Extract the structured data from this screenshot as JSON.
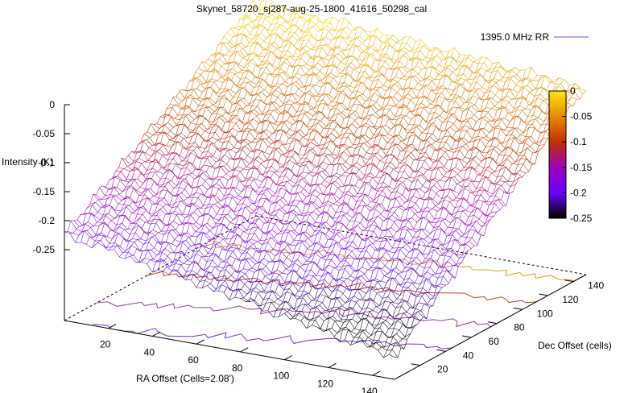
{
  "chart_data": {
    "type": "surface3d",
    "title": "Skynet_58720_sj287-aug-25-1800_41616_50298_cal",
    "xlabel": "RA Offset (Cells=2.08')",
    "ylabel": "Dec Offset (cells)",
    "zlabel": "Intensity (K)",
    "legend": {
      "label": "1395.0 MHz RR",
      "color": "#9a3fc0",
      "placement": "top-right"
    },
    "x_ticks": [
      "20",
      "40",
      "60",
      "80",
      "100",
      "120",
      "140"
    ],
    "y_ticks": [
      "20",
      "40",
      "60",
      "80",
      "100",
      "120",
      "140"
    ],
    "z_ticks": [
      "0",
      "-0.05",
      "-0.1",
      "-0.15",
      "-0.2",
      "-0.25"
    ],
    "xlim": [
      0,
      150
    ],
    "ylim": [
      0,
      150
    ],
    "zlim": [
      -0.3,
      0
    ],
    "colorbar": {
      "ticks": [
        "0",
        "-0.05",
        "-0.1",
        "-0.15",
        "-0.2",
        "-0.25"
      ],
      "range": [
        -0.25,
        0
      ],
      "colors": [
        "#f8e800",
        "#e88a00",
        "#c03000",
        "#a000c0",
        "#6a00ff",
        "#000000"
      ]
    },
    "surface_corners": {
      "x0_y0": -0.18,
      "x150_y0": -0.27,
      "x0_y150": 0.0,
      "x150_y150": -0.04
    },
    "contours": [
      {
        "level": -0.05,
        "color": "#e0a010"
      },
      {
        "level": -0.1,
        "color": "#c04a10"
      },
      {
        "level": -0.15,
        "color": "#a035b0"
      },
      {
        "level": -0.2,
        "color": "#7a30d0"
      }
    ]
  }
}
